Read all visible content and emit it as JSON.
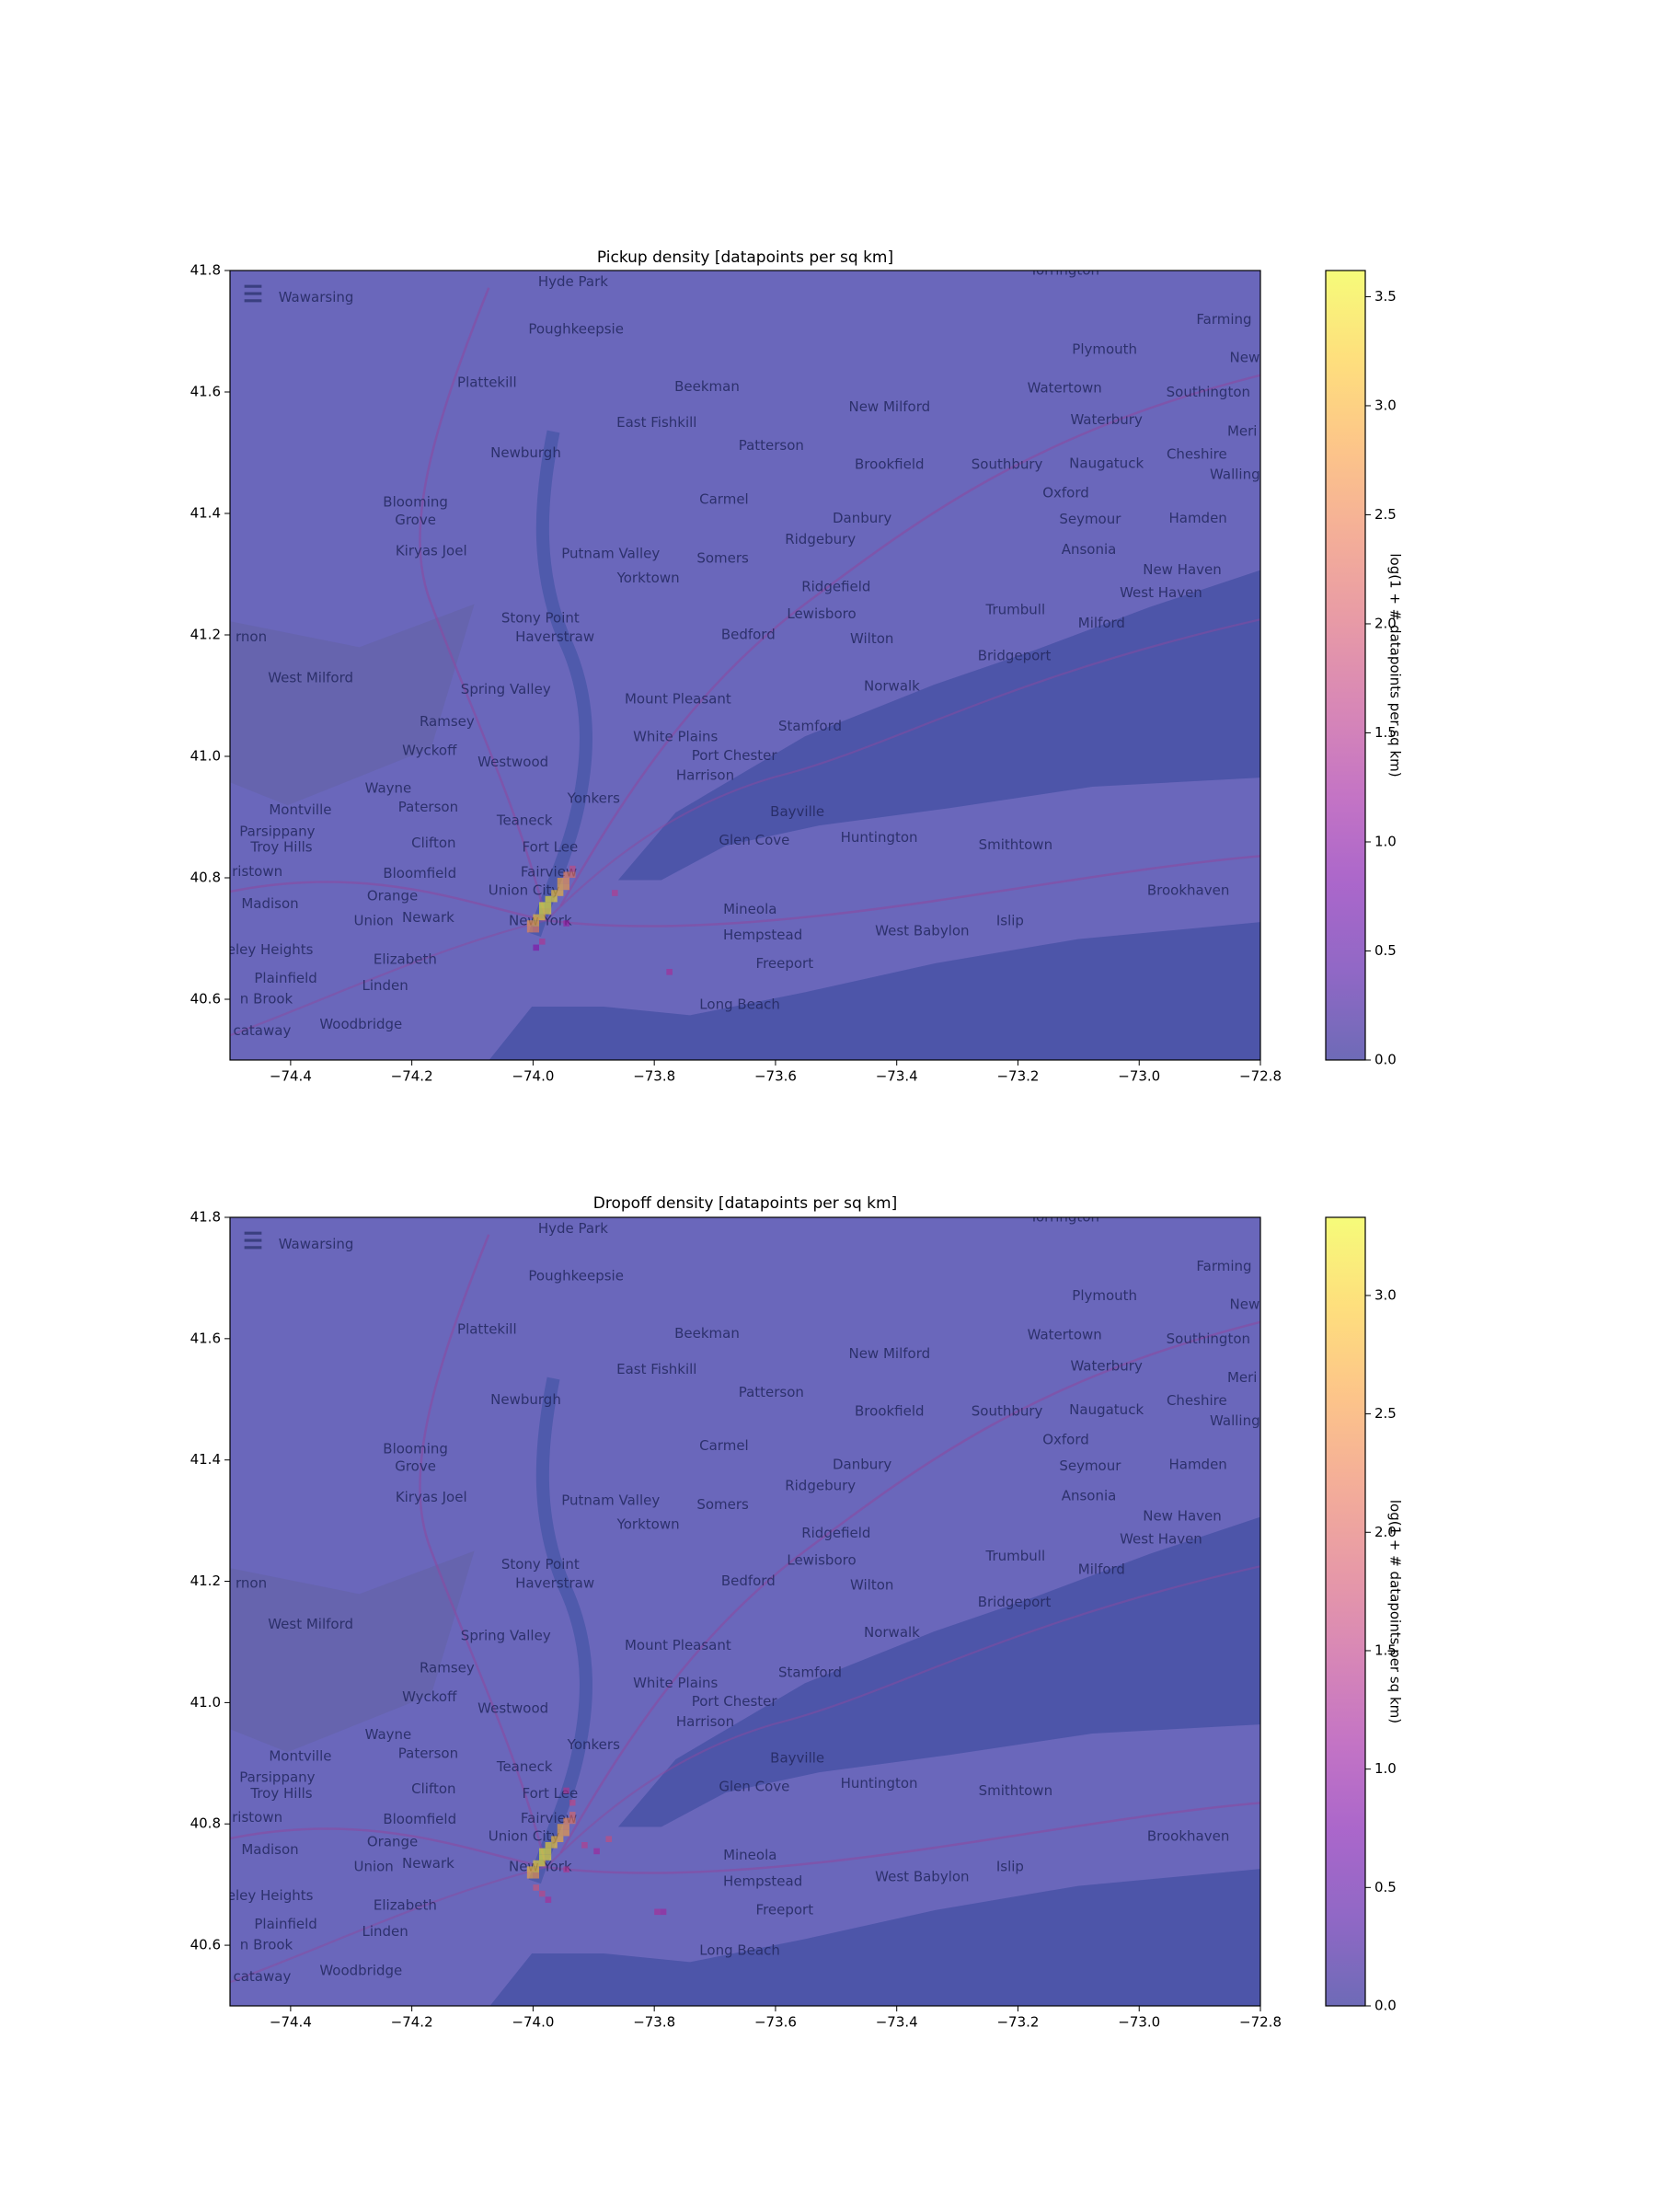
{
  "chart_data": [
    {
      "type": "heatmap",
      "title": "Pickup density [datapoints per sq km]",
      "colormap": "plasma",
      "alpha": 0.6,
      "xlim": [
        -74.5,
        -72.8
      ],
      "ylim": [
        40.5,
        41.8
      ],
      "xticks": [
        {
          "value": -74.4,
          "label": "−74.4"
        },
        {
          "value": -74.2,
          "label": "−74.2"
        },
        {
          "value": -74.0,
          "label": "−74.0"
        },
        {
          "value": -73.8,
          "label": "−73.8"
        },
        {
          "value": -73.6,
          "label": "−73.6"
        },
        {
          "value": -73.4,
          "label": "−73.4"
        },
        {
          "value": -73.2,
          "label": "−73.2"
        },
        {
          "value": -73.0,
          "label": "−73.0"
        },
        {
          "value": -72.8,
          "label": "−72.8"
        }
      ],
      "yticks": [
        40.6,
        40.8,
        {
          "value": 41.0,
          "label": "41.0"
        },
        41.2,
        41.4,
        41.6,
        41.8
      ],
      "cell_size": 0.01,
      "x": [
        -74.01,
        -74.0,
        -74.01,
        -74.0,
        -74.0,
        -73.99,
        -73.99,
        -73.98,
        -73.99,
        -73.98,
        -73.98,
        -73.97,
        -73.97,
        -73.96,
        -73.96,
        -73.95,
        -73.95,
        -73.96,
        -73.94,
        -73.95,
        -73.94,
        -73.87,
        -73.78,
        -74.0,
        -73.99,
        -73.95
      ],
      "y": [
        40.71,
        40.71,
        40.72,
        40.72,
        40.73,
        40.73,
        40.74,
        40.74,
        40.75,
        40.75,
        40.76,
        40.76,
        40.77,
        40.77,
        40.78,
        40.78,
        40.79,
        40.79,
        40.8,
        40.8,
        40.81,
        40.77,
        40.64,
        40.68,
        40.69,
        40.72
      ],
      "values": [
        2.6,
        2.4,
        2.8,
        3.0,
        3.2,
        3.3,
        3.5,
        3.4,
        3.6,
        3.5,
        3.5,
        3.4,
        3.2,
        3.1,
        3.0,
        2.8,
        2.7,
        2.9,
        2.3,
        2.5,
        1.8,
        1.6,
        1.4,
        1.0,
        1.5,
        1.2
      ],
      "clim": [
        0,
        3.62
      ],
      "colorbar_label": "log(1 + # datapoints per sq km)",
      "colorbar_ticks": [
        {
          "value": 0,
          "label": "0.0"
        },
        0.5,
        {
          "value": 1,
          "label": "1.0"
        },
        1.5,
        {
          "value": 2,
          "label": "2.0"
        },
        2.5,
        {
          "value": 3,
          "label": "3.0"
        },
        3.5
      ]
    },
    {
      "type": "heatmap",
      "title": "Dropoff density [datapoints per sq km]",
      "colormap": "plasma",
      "alpha": 0.6,
      "xlim": [
        -74.5,
        -72.8
      ],
      "ylim": [
        40.5,
        41.8
      ],
      "xticks": [
        {
          "value": -74.4,
          "label": "−74.4"
        },
        {
          "value": -74.2,
          "label": "−74.2"
        },
        {
          "value": -74.0,
          "label": "−74.0"
        },
        {
          "value": -73.8,
          "label": "−73.8"
        },
        {
          "value": -73.6,
          "label": "−73.6"
        },
        {
          "value": -73.4,
          "label": "−73.4"
        },
        {
          "value": -73.2,
          "label": "−73.2"
        },
        {
          "value": -73.0,
          "label": "−73.0"
        },
        {
          "value": -72.8,
          "label": "−72.8"
        }
      ],
      "yticks": [
        40.6,
        40.8,
        {
          "value": 41.0,
          "label": "41.0"
        },
        41.2,
        41.4,
        41.6,
        41.8
      ],
      "cell_size": 0.01,
      "x": [
        -74.01,
        -74.0,
        -74.01,
        -74.0,
        -74.0,
        -73.99,
        -73.99,
        -73.98,
        -73.99,
        -73.98,
        -73.98,
        -73.97,
        -73.97,
        -73.96,
        -73.96,
        -73.95,
        -73.95,
        -73.96,
        -73.94,
        -73.95,
        -73.94,
        -73.95,
        -73.94,
        -73.9,
        -73.8,
        -73.79,
        -73.88,
        -73.92,
        -73.99,
        -73.98,
        -74.0,
        -73.95
      ],
      "y": [
        40.71,
        40.71,
        40.72,
        40.72,
        40.73,
        40.73,
        40.74,
        40.74,
        40.75,
        40.75,
        40.76,
        40.76,
        40.77,
        40.77,
        40.78,
        40.78,
        40.79,
        40.79,
        40.8,
        40.8,
        40.81,
        40.85,
        40.83,
        40.75,
        40.65,
        40.65,
        40.77,
        40.76,
        40.68,
        40.67,
        40.69,
        40.72
      ],
      "values": [
        2.7,
        2.5,
        2.9,
        3.0,
        3.1,
        3.2,
        3.3,
        3.2,
        3.3,
        3.2,
        3.1,
        3.0,
        2.9,
        2.8,
        2.7,
        2.6,
        2.5,
        2.7,
        2.2,
        2.4,
        2.0,
        1.4,
        1.6,
        1.2,
        1.3,
        1.2,
        1.7,
        1.5,
        1.6,
        1.3,
        1.8,
        1.4
      ],
      "clim": [
        0,
        3.33
      ],
      "colorbar_label": "log(1 + # datapoints per sq km)",
      "colorbar_ticks": [
        {
          "value": 0,
          "label": "0.0"
        },
        0.5,
        {
          "value": 1,
          "label": "1.0"
        },
        1.5,
        {
          "value": 2,
          "label": "2.0"
        },
        2.5,
        {
          "value": 3,
          "label": "3.0"
        }
      ]
    }
  ],
  "basemap_labels": [
    {
      "text": "Wawarsing",
      "lon": -74.358,
      "lat": 41.755
    },
    {
      "text": "Hyde Park",
      "lon": -73.934,
      "lat": 41.781
    },
    {
      "text": "Torrington",
      "lon": -73.123,
      "lat": 41.8
    },
    {
      "text": "Farming",
      "lon": -72.86,
      "lat": 41.719
    },
    {
      "text": "Poughkeepsie",
      "lon": -73.929,
      "lat": 41.703
    },
    {
      "text": "Plymouth",
      "lon": -73.057,
      "lat": 41.67
    },
    {
      "text": "New",
      "lon": -72.826,
      "lat": 41.656
    },
    {
      "text": "Plattekill",
      "lon": -74.076,
      "lat": 41.615
    },
    {
      "text": "Beekman",
      "lon": -73.713,
      "lat": 41.608
    },
    {
      "text": "Watertown",
      "lon": -73.123,
      "lat": 41.606
    },
    {
      "text": "Southington",
      "lon": -72.886,
      "lat": 41.599
    },
    {
      "text": "New Milford",
      "lon": -73.412,
      "lat": 41.575
    },
    {
      "text": "Waterbury",
      "lon": -73.054,
      "lat": 41.554
    },
    {
      "text": "East Fishkill",
      "lon": -73.796,
      "lat": 41.549
    },
    {
      "text": "Meri",
      "lon": -72.83,
      "lat": 41.535
    },
    {
      "text": "Patterson",
      "lon": -73.607,
      "lat": 41.511
    },
    {
      "text": "Newburgh",
      "lon": -74.012,
      "lat": 41.499
    },
    {
      "text": "Cheshire",
      "lon": -72.905,
      "lat": 41.497
    },
    {
      "text": "Naugatuck",
      "lon": -73.054,
      "lat": 41.482
    },
    {
      "text": "Brookfield",
      "lon": -73.412,
      "lat": 41.48
    },
    {
      "text": "Southbury",
      "lon": -73.218,
      "lat": 41.48
    },
    {
      "text": "Walling",
      "lon": -72.842,
      "lat": 41.464
    },
    {
      "text": "Oxford",
      "lon": -73.121,
      "lat": 41.433
    },
    {
      "text": "Carmel",
      "lon": -73.685,
      "lat": 41.423
    },
    {
      "text": "Blooming",
      "lon": -74.194,
      "lat": 41.418
    },
    {
      "text": "Grove",
      "lon": -74.194,
      "lat": 41.389
    },
    {
      "text": "Danbury",
      "lon": -73.457,
      "lat": 41.392
    },
    {
      "text": "Hamden",
      "lon": -72.903,
      "lat": 41.392
    },
    {
      "text": "Seymour",
      "lon": -73.081,
      "lat": 41.39
    },
    {
      "text": "Ridgebury",
      "lon": -73.526,
      "lat": 41.357
    },
    {
      "text": "Ansonia",
      "lon": -73.083,
      "lat": 41.34
    },
    {
      "text": "Kiryas Joel",
      "lon": -74.168,
      "lat": 41.338
    },
    {
      "text": "Putnam Valley",
      "lon": -73.872,
      "lat": 41.333
    },
    {
      "text": "Somers",
      "lon": -73.687,
      "lat": 41.326
    },
    {
      "text": "New Haven",
      "lon": -72.929,
      "lat": 41.307
    },
    {
      "text": "Yorktown",
      "lon": -73.81,
      "lat": 41.293
    },
    {
      "text": "Ridgefield",
      "lon": -73.5,
      "lat": 41.279
    },
    {
      "text": "West Haven",
      "lon": -72.964,
      "lat": 41.269
    },
    {
      "text": "Trumbull",
      "lon": -73.204,
      "lat": 41.241
    },
    {
      "text": "Lewisboro",
      "lon": -73.524,
      "lat": 41.234
    },
    {
      "text": "Stony Point",
      "lon": -73.988,
      "lat": 41.227
    },
    {
      "text": "Milford",
      "lon": -73.062,
      "lat": 41.219
    },
    {
      "text": "rnon",
      "lon": -74.465,
      "lat": 41.196
    },
    {
      "text": "Haverstraw",
      "lon": -73.964,
      "lat": 41.196
    },
    {
      "text": "Bedford",
      "lon": -73.645,
      "lat": 41.2
    },
    {
      "text": "Wilton",
      "lon": -73.441,
      "lat": 41.193
    },
    {
      "text": "Bridgeport",
      "lon": -73.206,
      "lat": 41.165
    },
    {
      "text": "West Milford",
      "lon": -74.367,
      "lat": 41.129
    },
    {
      "text": "Norwalk",
      "lon": -73.408,
      "lat": 41.115
    },
    {
      "text": "Spring Valley",
      "lon": -74.045,
      "lat": 41.11
    },
    {
      "text": "Mount Pleasant",
      "lon": -73.761,
      "lat": 41.094
    },
    {
      "text": "Ramsey",
      "lon": -74.142,
      "lat": 41.057
    },
    {
      "text": "Stamford",
      "lon": -73.543,
      "lat": 41.049
    },
    {
      "text": "White Plains",
      "lon": -73.765,
      "lat": 41.032
    },
    {
      "text": "Wyckoff",
      "lon": -74.171,
      "lat": 41.009
    },
    {
      "text": "Port Chester",
      "lon": -73.668,
      "lat": 41.001
    },
    {
      "text": "Westwood",
      "lon": -74.033,
      "lat": 40.99
    },
    {
      "text": "Harrison",
      "lon": -73.716,
      "lat": 40.968
    },
    {
      "text": "Wayne",
      "lon": -74.239,
      "lat": 40.947
    },
    {
      "text": "Yonkers",
      "lon": -73.9,
      "lat": 40.93
    },
    {
      "text": "Paterson",
      "lon": -74.173,
      "lat": 40.916
    },
    {
      "text": "Montville",
      "lon": -74.384,
      "lat": 40.911
    },
    {
      "text": "Bayville",
      "lon": -73.564,
      "lat": 40.908
    },
    {
      "text": "Teaneck",
      "lon": -74.014,
      "lat": 40.894
    },
    {
      "text": "Parsippany",
      "lon": -74.422,
      "lat": 40.876
    },
    {
      "text": "Huntington",
      "lon": -73.429,
      "lat": 40.866
    },
    {
      "text": "Glen Cove",
      "lon": -73.635,
      "lat": 40.861
    },
    {
      "text": "Clifton",
      "lon": -74.164,
      "lat": 40.857
    },
    {
      "text": "Smithtown",
      "lon": -73.204,
      "lat": 40.854
    },
    {
      "text": "Troy Hills",
      "lon": -74.415,
      "lat": 40.85
    },
    {
      "text": "Fort Lee",
      "lon": -73.972,
      "lat": 40.85
    },
    {
      "text": "Fairview",
      "lon": -73.974,
      "lat": 40.809
    },
    {
      "text": "ristown",
      "lon": -74.455,
      "lat": 40.81
    },
    {
      "text": "Bloomfield",
      "lon": -74.187,
      "lat": 40.807
    },
    {
      "text": "Union City",
      "lon": -74.015,
      "lat": 40.779
    },
    {
      "text": "Brookhaven",
      "lon": -72.919,
      "lat": 40.779
    },
    {
      "text": "Orange",
      "lon": -74.232,
      "lat": 40.77
    },
    {
      "text": "Madison",
      "lon": -74.434,
      "lat": 40.757
    },
    {
      "text": "Mineola",
      "lon": -73.642,
      "lat": 40.748
    },
    {
      "text": "Newark",
      "lon": -74.173,
      "lat": 40.734
    },
    {
      "text": "New York",
      "lon": -73.988,
      "lat": 40.729
    },
    {
      "text": "Islip",
      "lon": -73.213,
      "lat": 40.729
    },
    {
      "text": "Union",
      "lon": -74.263,
      "lat": 40.729
    },
    {
      "text": "West Babylon",
      "lon": -73.358,
      "lat": 40.712
    },
    {
      "text": "Hempstead",
      "lon": -73.621,
      "lat": 40.705
    },
    {
      "text": "Elizabeth",
      "lon": -74.211,
      "lat": 40.665
    },
    {
      "text": "keley Heights",
      "lon": -74.44,
      "lat": 40.681
    },
    {
      "text": "Freeport",
      "lon": -73.585,
      "lat": 40.658
    },
    {
      "text": "Plainfield",
      "lon": -74.408,
      "lat": 40.634
    },
    {
      "text": "Linden",
      "lon": -74.244,
      "lat": 40.622
    },
    {
      "text": "n Brook",
      "lon": -74.44,
      "lat": 40.6
    },
    {
      "text": "Long Beach",
      "lon": -73.659,
      "lat": 40.591
    },
    {
      "text": "Woodbridge",
      "lon": -74.284,
      "lat": 40.558
    },
    {
      "text": "cataway",
      "lon": -74.447,
      "lat": 40.548
    }
  ]
}
